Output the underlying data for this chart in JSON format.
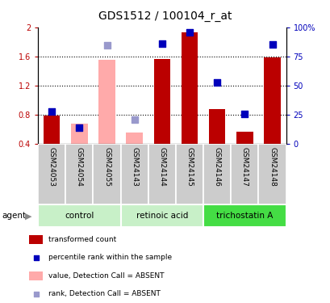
{
  "title": "GDS1512 / 100104_r_at",
  "samples": [
    "GSM24053",
    "GSM24054",
    "GSM24055",
    "GSM24143",
    "GSM24144",
    "GSM24145",
    "GSM24146",
    "GSM24147",
    "GSM24148"
  ],
  "groups": [
    {
      "label": "control",
      "start": 0,
      "end": 3,
      "color": "#c8f0c8"
    },
    {
      "label": "retinoic acid",
      "start": 3,
      "end": 6,
      "color": "#c8f0c8"
    },
    {
      "label": "trichostatin A",
      "start": 6,
      "end": 9,
      "color": "#44dd44"
    }
  ],
  "red_bars": [
    0.79,
    null,
    null,
    null,
    1.57,
    1.93,
    0.88,
    0.57,
    1.59
  ],
  "pink_bars": [
    null,
    0.68,
    1.55,
    0.56,
    null,
    null,
    null,
    null,
    null
  ],
  "blue_squares": [
    0.84,
    0.62,
    null,
    null,
    1.78,
    1.93,
    1.24,
    0.81,
    1.76
  ],
  "lavender_squares": [
    null,
    null,
    1.75,
    0.73,
    null,
    null,
    null,
    null,
    null
  ],
  "ylim_left": [
    0.4,
    2.0
  ],
  "ylim_right": [
    0,
    100
  ],
  "yticks_left": [
    0.4,
    0.8,
    1.2,
    1.6,
    2.0
  ],
  "ytick_labels_left": [
    "0.4",
    "0.8",
    "1.2",
    "1.6",
    "2"
  ],
  "yticks_right": [
    0,
    25,
    50,
    75,
    100
  ],
  "ytick_labels_right": [
    "0",
    "25",
    "50",
    "75",
    "100%"
  ],
  "bar_bottom": 0.4,
  "dotted_lines": [
    0.8,
    1.2,
    1.6
  ],
  "bar_width": 0.6,
  "red_color": "#bb0000",
  "pink_color": "#ffaaaa",
  "blue_color": "#0000bb",
  "lavender_color": "#9999cc",
  "legend_items": [
    {
      "label": "transformed count",
      "color": "#bb0000",
      "type": "bar"
    },
    {
      "label": "percentile rank within the sample",
      "color": "#0000bb",
      "type": "square"
    },
    {
      "label": "value, Detection Call = ABSENT",
      "color": "#ffaaaa",
      "type": "bar"
    },
    {
      "label": "rank, Detection Call = ABSENT",
      "color": "#9999cc",
      "type": "square"
    }
  ],
  "agent_label": "agent",
  "sample_box_color": "#cccccc",
  "grid_color": "#888888"
}
